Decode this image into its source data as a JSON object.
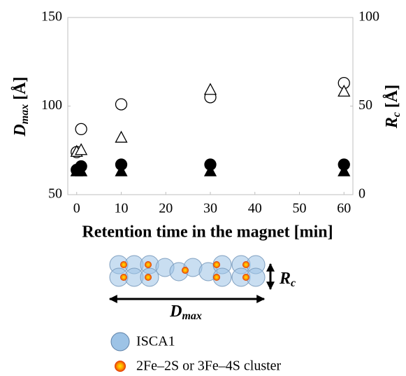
{
  "chart_data": {
    "type": "scatter",
    "x_label": "Retention time in the magnet [min]",
    "y_label": {
      "main": "D",
      "sub": "max",
      "unit": "[Å]"
    },
    "y2_label": {
      "main": "R",
      "sub": "c",
      "unit": "[Å]"
    },
    "x": [
      0,
      1,
      10,
      30,
      60
    ],
    "xlim": [
      -2,
      62
    ],
    "xticks": [
      0,
      10,
      20,
      30,
      40,
      50,
      60
    ],
    "ylim": [
      50,
      150
    ],
    "yticks": [
      50,
      100,
      150
    ],
    "y2lim": [
      0,
      100
    ],
    "y2ticks": [
      0,
      50,
      100
    ],
    "grid": false,
    "series": [
      {
        "marker": "circle",
        "filled": false,
        "color": "#000000",
        "values": [
          74,
          87,
          101,
          105,
          113
        ]
      },
      {
        "marker": "circle",
        "filled": true,
        "color": "#000000",
        "values": [
          64,
          66,
          67,
          67,
          67
        ]
      },
      {
        "marker": "triangle",
        "filled": false,
        "color": "#000000",
        "axis": "y2",
        "values": [
          24,
          25,
          32,
          59,
          58
        ]
      },
      {
        "marker": "triangle",
        "filled": true,
        "color": "#000000",
        "axis": "y2",
        "values": [
          13,
          13,
          13,
          13,
          13
        ]
      }
    ]
  },
  "diagram": {
    "height_label": {
      "main": "R",
      "sub": "c"
    },
    "width_label": {
      "main": "D",
      "sub": "max"
    },
    "legend": [
      "ISCA1",
      "2Fe–2S or 3Fe–4S cluster"
    ]
  }
}
